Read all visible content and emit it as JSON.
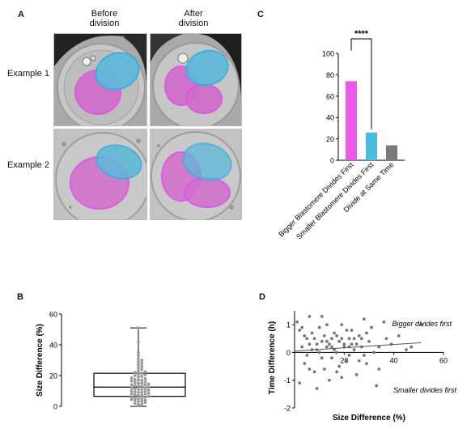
{
  "panels": {
    "a": "A",
    "b": "B",
    "c": "C",
    "d": "D"
  },
  "panel_a": {
    "col_before": "Before division",
    "col_after": "After division",
    "row1": "Example 1",
    "row2": "Example 2"
  },
  "colors": {
    "magenta": "#e34de6",
    "cyan": "#3fb4d9",
    "gray": "#7a7a7a"
  },
  "chart_data": [
    {
      "id": "C",
      "type": "bar",
      "categories": [
        "Bigger Blastomere Divides First",
        "Smaller Blastomere Divides First",
        "Divide at Same Time"
      ],
      "values": [
        74,
        26,
        14
      ],
      "bar_colors": [
        "#ea5ae8",
        "#4bbbe0",
        "#7a7a7a"
      ],
      "ylim": [
        0,
        100
      ],
      "yticks": [
        "0",
        "20",
        "40",
        "60",
        "80",
        "100"
      ],
      "annotation": "****",
      "xlabel": "",
      "ylabel": ""
    },
    {
      "id": "B",
      "type": "box",
      "ylabel": "Size Difference (%)",
      "ylim": [
        0,
        60
      ],
      "yticks": [
        "0",
        "20",
        "40",
        "60"
      ],
      "box": {
        "min": 0,
        "q1": 6.5,
        "median": 12.5,
        "q3": 21.5,
        "max": 51
      },
      "points": [
        0.5,
        1,
        1.5,
        2,
        2.5,
        3,
        3.5,
        4,
        4,
        4.5,
        5,
        5,
        5.5,
        6,
        6,
        6.5,
        7,
        7,
        7.5,
        8,
        8,
        8.5,
        9,
        9,
        9.5,
        10,
        10,
        10.5,
        11,
        11,
        11.5,
        12,
        12,
        12.5,
        13,
        13,
        13.5,
        14,
        14,
        14.5,
        15,
        15,
        15.5,
        16,
        16.5,
        17,
        17,
        17.5,
        18,
        18.5,
        19,
        19.5,
        20,
        20.5,
        21,
        21.5,
        22,
        22.5,
        23,
        24,
        25,
        26,
        27,
        28,
        29,
        30,
        31,
        33,
        35,
        42,
        51
      ]
    },
    {
      "id": "D",
      "type": "scatter",
      "xlabel": "Size Difference (%)",
      "ylabel": "Time Difference (h)",
      "xlim": [
        0,
        60
      ],
      "ylim": [
        -2,
        1.5
      ],
      "xticks": [
        "20",
        "40",
        "60"
      ],
      "yticks": [
        "-2",
        "-1",
        "0",
        "1"
      ],
      "annotation_top": "Bigger divides first",
      "annotation_bottom": "Smaller divides first",
      "trend": {
        "x": [
          0,
          51
        ],
        "y": [
          0.05,
          0.35
        ]
      },
      "points": [
        [
          1,
          1.1
        ],
        [
          2,
          0.8
        ],
        [
          3,
          0.2
        ],
        [
          4,
          -0.4
        ],
        [
          5,
          0.5
        ],
        [
          6,
          1.3
        ],
        [
          7,
          0.1
        ],
        [
          8,
          -0.7
        ],
        [
          9,
          0.3
        ],
        [
          10,
          0.9
        ],
        [
          11,
          -0.2
        ],
        [
          12,
          0.6
        ],
        [
          13,
          0.4
        ],
        [
          14,
          -1.0
        ],
        [
          15,
          0.2
        ],
        [
          16,
          0.7
        ],
        [
          17,
          0.0
        ],
        [
          18,
          -0.5
        ],
        [
          19,
          1.0
        ],
        [
          20,
          0.3
        ],
        [
          21,
          -0.3
        ],
        [
          22,
          0.5
        ],
        [
          23,
          0.8
        ],
        [
          24,
          0.1
        ],
        [
          25,
          -0.8
        ],
        [
          26,
          0.6
        ],
        [
          27,
          0.2
        ],
        [
          28,
          1.2
        ],
        [
          29,
          -0.4
        ],
        [
          30,
          0.4
        ],
        [
          31,
          0.9
        ],
        [
          32,
          0.0
        ],
        [
          34,
          -0.6
        ],
        [
          36,
          1.1
        ],
        [
          39,
          0.3
        ],
        [
          42,
          0.6
        ],
        [
          47,
          0.2
        ],
        [
          51,
          1.0
        ],
        [
          2,
          -1.1
        ],
        [
          3,
          0.9
        ],
        [
          4,
          0.6
        ],
        [
          5,
          -0.1
        ],
        [
          6,
          0.3
        ],
        [
          7,
          0.7
        ],
        [
          8,
          0.5
        ],
        [
          9,
          -1.3
        ],
        [
          10,
          0.0
        ],
        [
          11,
          0.4
        ],
        [
          12,
          -0.6
        ],
        [
          13,
          1.0
        ],
        [
          14,
          0.3
        ],
        [
          15,
          -0.2
        ],
        [
          16,
          0.1
        ],
        [
          17,
          0.6
        ],
        [
          18,
          0.4
        ],
        [
          19,
          -0.9
        ],
        [
          20,
          0.2
        ],
        [
          21,
          0.8
        ],
        [
          22,
          -0.1
        ],
        [
          23,
          0.3
        ],
        [
          24,
          0.5
        ],
        [
          26,
          -0.3
        ],
        [
          27,
          0.5
        ],
        [
          29,
          0.7
        ],
        [
          33,
          -1.2
        ],
        [
          34,
          0.2
        ],
        [
          37,
          0.5
        ],
        [
          45,
          0.1
        ],
        [
          6,
          -0.6
        ],
        [
          9,
          0.1
        ],
        [
          11,
          1.3
        ],
        [
          13,
          0.2
        ],
        [
          15,
          0.5
        ],
        [
          17,
          -0.7
        ],
        [
          19,
          0.5
        ],
        [
          22,
          0.2
        ],
        [
          25,
          0.3
        ],
        [
          28,
          -0.1
        ]
      ]
    }
  ]
}
